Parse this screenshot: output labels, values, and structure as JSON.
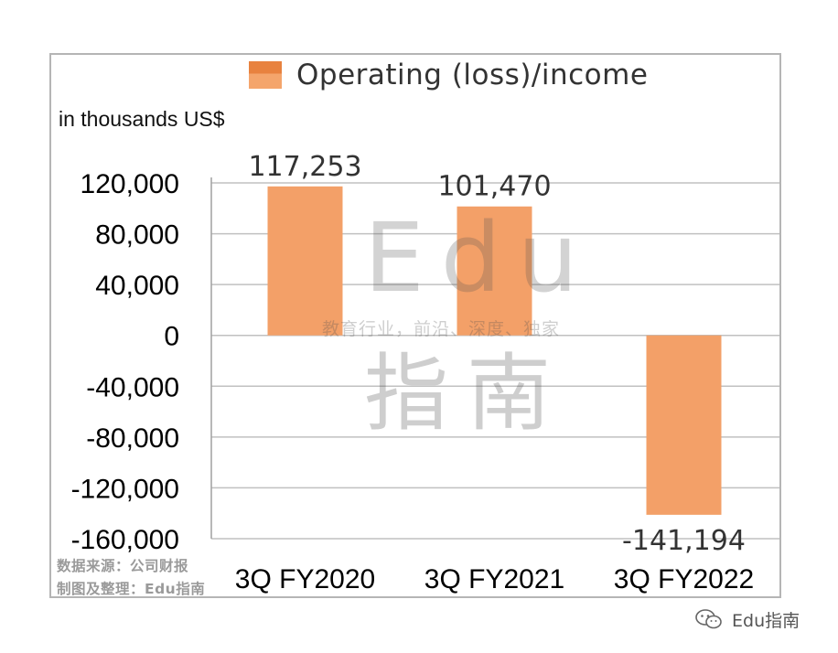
{
  "legend": {
    "label": "Operating (loss)/income"
  },
  "units_label": "in thousands US$",
  "source_note": {
    "line1": "数据来源：公司财报",
    "line2": "制图及整理：Edu指南"
  },
  "watermark": {
    "edu": "Edu",
    "slogan": "教育行业，前沿、深度、独家",
    "zhinan": "指南"
  },
  "brand": {
    "text": "Edu指南",
    "icon": "wechat-icon"
  },
  "colors": {
    "bar": "#f3a068",
    "legend_top": "#e8823f",
    "grid": "#c0c0c0"
  },
  "chart_data": {
    "type": "bar",
    "categories": [
      "3Q FY2020",
      "3Q FY2021",
      "3Q FY2022"
    ],
    "series": [
      {
        "name": "Operating (loss)/income",
        "values": [
          117253,
          101470,
          -141194
        ]
      }
    ],
    "data_labels": [
      "117,253",
      "101,470",
      "-141,194"
    ],
    "yticks": [
      "120,000",
      "80,000",
      "40,000",
      "0",
      "-40,000",
      "-80,000",
      "-120,000",
      "-160,000"
    ],
    "ylim": [
      -160000,
      120000
    ],
    "grid": true,
    "ylabel": "in thousands US$"
  }
}
